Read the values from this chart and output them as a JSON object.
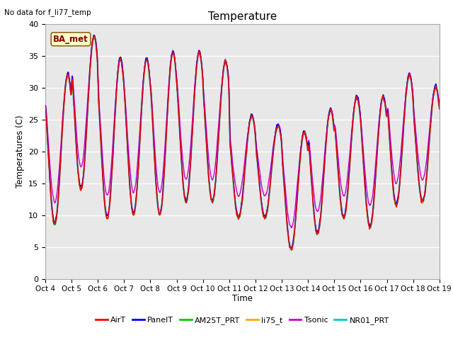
{
  "title": "Temperature",
  "ylabel": "Temperatures (C)",
  "xlabel": "Time",
  "note": "No data for f_li77_temp",
  "annotation": "BA_met",
  "ylim": [
    0,
    40
  ],
  "yticks": [
    0,
    5,
    10,
    15,
    20,
    25,
    30,
    35,
    40
  ],
  "xtick_labels": [
    "Oct 4",
    "Oct 5",
    "Oct 6",
    "Oct 7",
    "Oct 8",
    "Oct 9",
    "Oct 10",
    "Oct 11",
    "Oct 12",
    "Oct 13",
    "Oct 14",
    "Oct 15",
    "Oct 16",
    "Oct 17",
    "Oct 18",
    "Oct 19"
  ],
  "background_color": "#e8e8e8",
  "series": {
    "AirT": {
      "color": "#ff0000",
      "lw": 1.0
    },
    "PanelT": {
      "color": "#0000ff",
      "lw": 1.0
    },
    "AM25T_PRT": {
      "color": "#00cc00",
      "lw": 1.0
    },
    "li75_t": {
      "color": "#ffaa00",
      "lw": 1.0
    },
    "Tsonic": {
      "color": "#cc00cc",
      "lw": 1.0
    },
    "NR01_PRT": {
      "color": "#00cccc",
      "lw": 1.5
    }
  },
  "peaks": [
    32,
    38,
    34.5,
    34.5,
    35.5,
    35.5,
    34.0,
    25.5,
    24.0,
    23.0,
    26.5,
    28.5,
    28.5,
    32.0,
    30.0
  ],
  "mins": [
    8.5,
    14,
    9.5,
    10.0,
    10.0,
    12.0,
    12.0,
    9.5,
    9.5,
    4.5,
    7.0,
    9.5,
    8.0,
    11.5,
    12.0
  ],
  "n_days": 15,
  "pts_per_day": 144,
  "figsize": [
    6.4,
    4.8
  ],
  "dpi": 100
}
